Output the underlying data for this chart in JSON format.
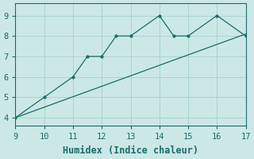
{
  "title": "",
  "xlabel": "Humidex (Indice chaleur)",
  "ylabel": "",
  "bg_color": "#cce8e6",
  "line_color": "#1a6b6b",
  "marker_color": "#1a6b6b",
  "grid_color": "#aad4d0",
  "curve_x": [
    9,
    10,
    11,
    11.5,
    12,
    12.5,
    13,
    14,
    14.5,
    15,
    16,
    17
  ],
  "curve_y": [
    4,
    5,
    6,
    7,
    7,
    8,
    8,
    9,
    8,
    8,
    9,
    8
  ],
  "line_x": [
    9,
    17
  ],
  "line_y": [
    4,
    8.1
  ],
  "xlim": [
    9,
    17
  ],
  "ylim": [
    3.6,
    9.6
  ],
  "xticks": [
    9,
    10,
    11,
    12,
    13,
    14,
    15,
    16,
    17
  ],
  "yticks": [
    4,
    5,
    6,
    7,
    8,
    9
  ],
  "tick_fontsize": 7.5,
  "xlabel_fontsize": 8.5
}
